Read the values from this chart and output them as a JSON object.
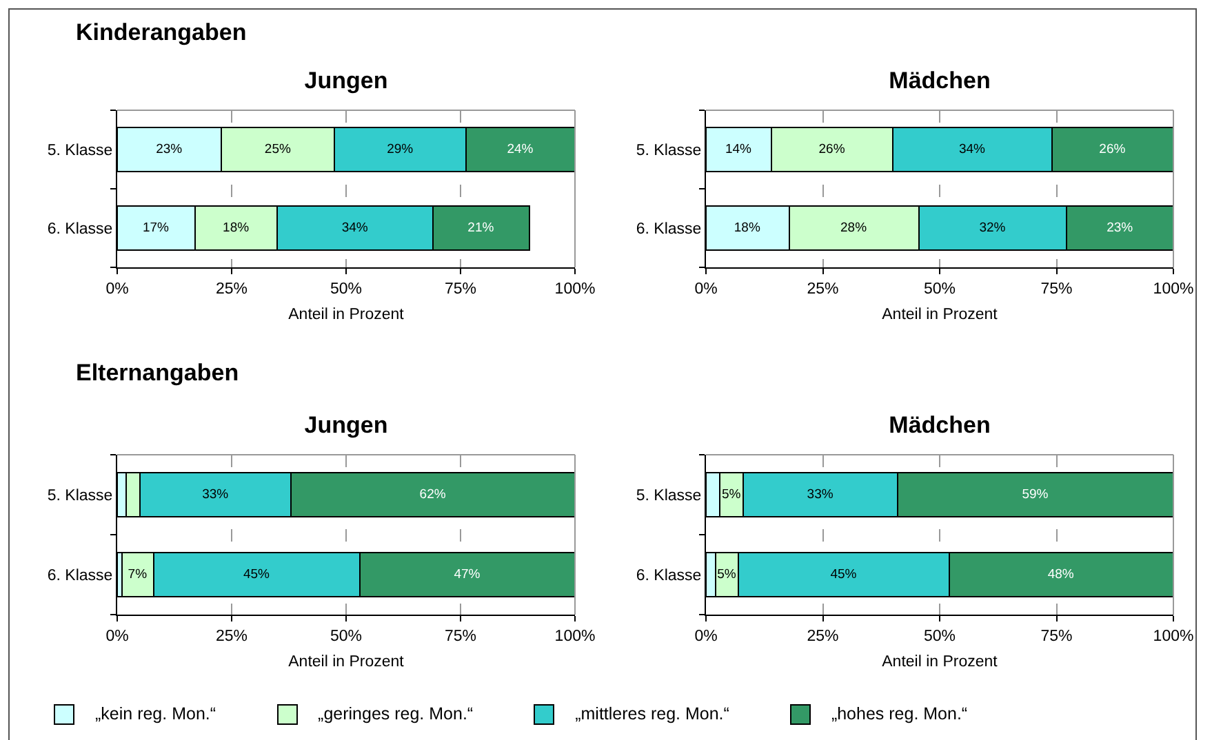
{
  "chart_data": [
    {
      "type": "bar",
      "orientation": "horizontal",
      "stacked": true,
      "title": "Jungen",
      "xlabel": "Anteil in Prozent",
      "annotations": [
        "Kinderangaben"
      ],
      "categories": [
        "5. Klasse",
        "6. Klasse"
      ],
      "xlim": [
        0,
        100
      ],
      "xticks": [
        {
          "value": 0,
          "label": "0%"
        },
        {
          "value": 25,
          "label": "25%"
        },
        {
          "value": 50,
          "label": "50%"
        },
        {
          "value": 75,
          "label": "75%"
        },
        {
          "value": 100,
          "label": "100%"
        }
      ],
      "grid": "x",
      "legend": "bottom",
      "series": [
        {
          "name": "„kein reg. Mon.“",
          "color": "#ccffff",
          "values": [
            22.8,
            17
          ],
          "value_labels": [
            "23%",
            "17%"
          ]
        },
        {
          "name": "„geringes reg. Mon.“",
          "color": "#ccffcc",
          "values": [
            24.7,
            18
          ],
          "value_labels": [
            "25%",
            "18%"
          ]
        },
        {
          "name": "„mittleres reg. Mon.“",
          "color": "#33cccc",
          "values": [
            28.7,
            34
          ],
          "value_labels": [
            "29%",
            "34%"
          ]
        },
        {
          "name": "„hohes reg. Mon.“",
          "color": "#339966",
          "values": [
            23.8,
            21
          ],
          "value_labels": [
            "24%",
            "21%"
          ]
        }
      ]
    },
    {
      "type": "bar",
      "orientation": "horizontal",
      "stacked": true,
      "title": "Mädchen",
      "xlabel": "Anteil in Prozent",
      "categories": [
        "5. Klasse",
        "6. Klasse"
      ],
      "xlim": [
        0,
        100
      ],
      "xticks": [
        {
          "value": 0,
          "label": "0%"
        },
        {
          "value": 25,
          "label": "25%"
        },
        {
          "value": 50,
          "label": "50%"
        },
        {
          "value": 75,
          "label": "75%"
        },
        {
          "value": 100,
          "label": "100%"
        }
      ],
      "grid": "x",
      "series": [
        {
          "color": "#ccffff",
          "values": [
            14,
            17.8
          ],
          "value_labels": [
            "14%",
            "18%"
          ]
        },
        {
          "color": "#ccffcc",
          "values": [
            26,
            27.7
          ],
          "value_labels": [
            "26%",
            "28%"
          ]
        },
        {
          "color": "#33cccc",
          "values": [
            34,
            31.7
          ],
          "value_labels": [
            "34%",
            "32%"
          ]
        },
        {
          "color": "#339966",
          "values": [
            26,
            22.8
          ],
          "value_labels": [
            "26%",
            "23%"
          ]
        }
      ]
    },
    {
      "type": "bar",
      "orientation": "horizontal",
      "stacked": true,
      "title": "Jungen",
      "xlabel": "Anteil in Prozent",
      "annotations": [
        "Elternangaben"
      ],
      "categories": [
        "5. Klasse",
        "6. Klasse"
      ],
      "xlim": [
        0,
        100
      ],
      "xticks": [
        {
          "value": 0,
          "label": "0%"
        },
        {
          "value": 25,
          "label": "25%"
        },
        {
          "value": 50,
          "label": "50%"
        },
        {
          "value": 75,
          "label": "75%"
        },
        {
          "value": 100,
          "label": "100%"
        }
      ],
      "grid": "x",
      "series": [
        {
          "color": "#ccffff",
          "values": [
            2,
            1
          ],
          "value_labels": [
            null,
            null
          ]
        },
        {
          "color": "#ccffcc",
          "values": [
            3,
            7
          ],
          "value_labels": [
            null,
            "7%"
          ]
        },
        {
          "color": "#33cccc",
          "values": [
            33,
            45
          ],
          "value_labels": [
            "33%",
            "45%"
          ]
        },
        {
          "color": "#339966",
          "values": [
            62,
            47
          ],
          "value_labels": [
            "62%",
            "47%"
          ]
        }
      ]
    },
    {
      "type": "bar",
      "orientation": "horizontal",
      "stacked": true,
      "title": "Mädchen",
      "xlabel": "Anteil in Prozent",
      "categories": [
        "5. Klasse",
        "6. Klasse"
      ],
      "xlim": [
        0,
        100
      ],
      "xticks": [
        {
          "value": 0,
          "label": "0%"
        },
        {
          "value": 25,
          "label": "25%"
        },
        {
          "value": 50,
          "label": "50%"
        },
        {
          "value": 75,
          "label": "75%"
        },
        {
          "value": 100,
          "label": "100%"
        }
      ],
      "grid": "x",
      "series": [
        {
          "color": "#ccffff",
          "values": [
            3,
            2
          ],
          "value_labels": [
            null,
            null
          ]
        },
        {
          "color": "#ccffcc",
          "values": [
            5,
            5
          ],
          "value_labels": [
            "5%",
            "5%"
          ]
        },
        {
          "color": "#33cccc",
          "values": [
            33,
            45
          ],
          "value_labels": [
            "33%",
            "45%"
          ]
        },
        {
          "color": "#339966",
          "values": [
            59,
            48
          ],
          "value_labels": [
            "59%",
            "48%"
          ]
        }
      ]
    }
  ]
}
